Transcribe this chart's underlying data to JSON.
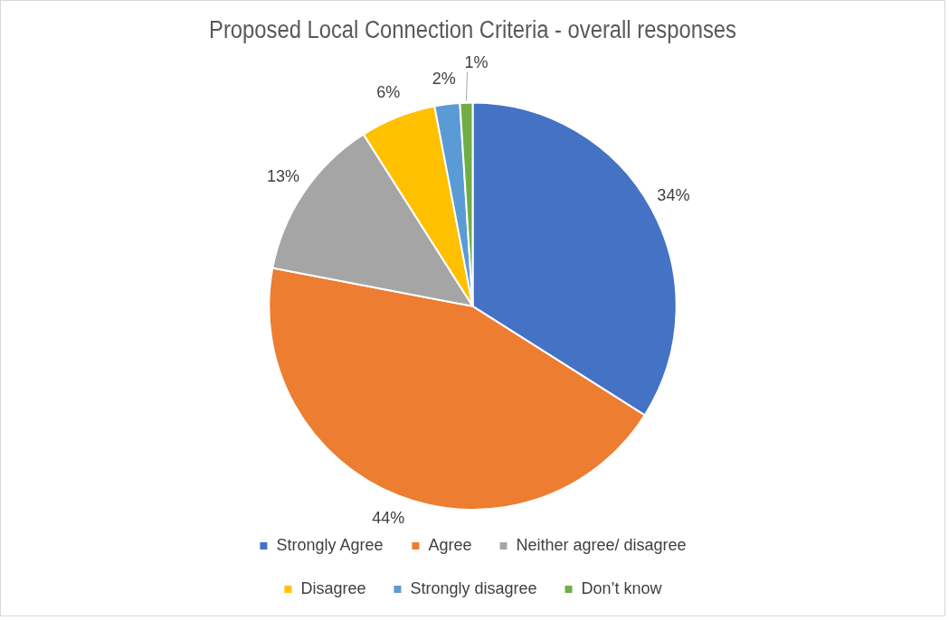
{
  "chart_data": {
    "type": "pie",
    "title": "Proposed Local Connection Criteria - overall responses",
    "categories": [
      "Strongly Agree",
      "Agree",
      "Neither agree/ disagree",
      "Disagree",
      "Strongly disagree",
      "Don’t know"
    ],
    "values": [
      34,
      44,
      13,
      6,
      2,
      1
    ],
    "colors": [
      "#4472c4",
      "#ed7d31",
      "#a5a5a5",
      "#ffc000",
      "#5b9bd5",
      "#70ad47"
    ],
    "value_labels": [
      "34%",
      "44%",
      "13%",
      "6%",
      "2%",
      "1%"
    ],
    "legend": "bottom"
  }
}
